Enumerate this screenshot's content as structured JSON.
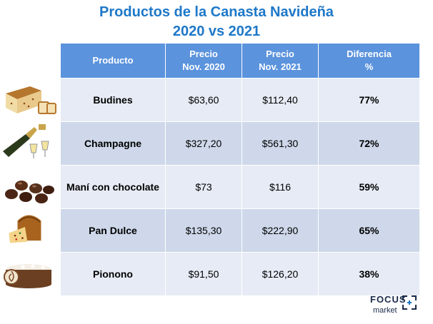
{
  "title_line1": "Productos de la Canasta Navideña",
  "title_line2": "2020 vs 2021",
  "headers": {
    "producto": "Producto",
    "precio2020_a": "Precio",
    "precio2020_b": "Nov. 2020",
    "precio2021_a": "Precio",
    "precio2021_b": "Nov. 2021",
    "diferencia_a": "Diferencia",
    "diferencia_b": "%"
  },
  "rows": [
    {
      "producto": "Budines",
      "p2020": "$63,60",
      "p2021": "$112,40",
      "diff": "77%",
      "icon": "budin-icon"
    },
    {
      "producto": "Champagne",
      "p2020": "$327,20",
      "p2021": "$561,30",
      "diff": "72%",
      "icon": "champagne-icon"
    },
    {
      "producto": "Maní con chocolate",
      "p2020": "$73",
      "p2021": "$116",
      "diff": "59%",
      "icon": "chocolate-icon"
    },
    {
      "producto": "Pan Dulce",
      "p2020": "$135,30",
      "p2021": "$222,90",
      "diff": "65%",
      "icon": "pan-dulce-icon"
    },
    {
      "producto": "Pionono",
      "p2020": "$91,50",
      "p2021": "$126,20",
      "diff": "38%",
      "icon": "pionono-icon"
    }
  ],
  "logo": {
    "line1": "FOCUS",
    "line2": "market"
  },
  "colors": {
    "title": "#1e78c8",
    "header": "#5b93dd",
    "diff": "#e8141c"
  }
}
